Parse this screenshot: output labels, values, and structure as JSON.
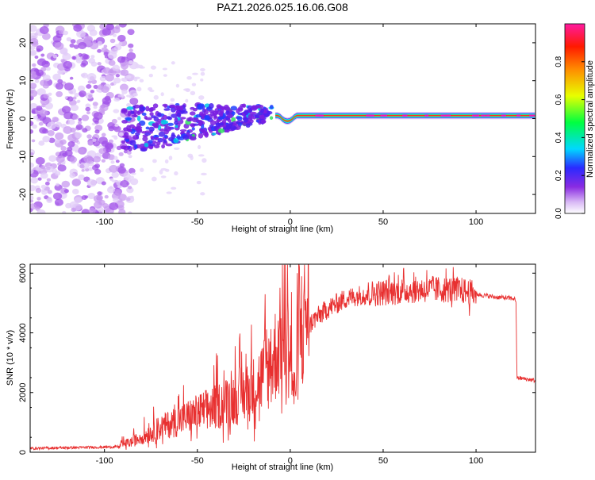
{
  "title": "PAZ1.2026.025.16.06.G08",
  "chart_data": [
    {
      "type": "heatmap",
      "name": "spectrogram",
      "xlabel": "Height of straight line (km)",
      "ylabel": "Frequency (Hz)",
      "xlim": [
        -140,
        132
      ],
      "ylim": [
        -25,
        25
      ],
      "xticks": [
        -100,
        -50,
        0,
        50,
        100
      ],
      "xtick_labels": [
        "-100",
        "-50",
        "0",
        "50",
        "100"
      ],
      "yticks": [
        -20,
        -10,
        0,
        10,
        20
      ],
      "ytick_labels": [
        "-20",
        "-10",
        "0",
        "10",
        "20"
      ],
      "colorbar": {
        "label": "Normalized spectral amplitude",
        "range": [
          0,
          1
        ],
        "ticks": [
          0.0,
          0.2,
          0.4,
          0.6,
          0.8
        ],
        "tick_labels": [
          "0.0",
          "0.2",
          "0.4",
          "0.6",
          "0.8"
        ],
        "colors": [
          "#ffffff",
          "#c8a0f0",
          "#7a1fe0",
          "#2020ff",
          "#00e0ff",
          "#00ff40",
          "#ffff00",
          "#ff8000",
          "#ff0000",
          "#ff00a0"
        ]
      },
      "features": {
        "noise_region_x": [
          -140,
          -90
        ],
        "turbulent_region_x": [
          -90,
          -10
        ],
        "stable_tone_x": [
          -10,
          132
        ],
        "stable_tone_freq": 0.8
      }
    },
    {
      "type": "line",
      "name": "snr",
      "xlabel": "Height of straight line (km)",
      "ylabel": "SNR (10 * v/v)",
      "xlim": [
        -140,
        132
      ],
      "ylim": [
        0,
        6300
      ],
      "xticks": [
        -100,
        -50,
        0,
        50,
        100
      ],
      "xtick_labels": [
        "-100",
        "-50",
        "0",
        "50",
        "100"
      ],
      "yticks": [
        0,
        2000,
        4000,
        6000
      ],
      "ytick_labels": [
        "0",
        "2000",
        "4000",
        "6000"
      ],
      "line_color": "#e83030",
      "envelope": {
        "x": [
          -140,
          -92,
          -85,
          -70,
          -50,
          -35,
          -20,
          -10,
          -5,
          0,
          2,
          5,
          8,
          12,
          20,
          30,
          40,
          50,
          60,
          70,
          80,
          90,
          100,
          110,
          120,
          121.5,
          122,
          132
        ],
        "y": [
          130,
          180,
          300,
          700,
          1100,
          1400,
          1800,
          2500,
          3200,
          3000,
          1500,
          3400,
          4000,
          4400,
          4800,
          5150,
          5300,
          5350,
          5400,
          5450,
          5450,
          5450,
          5300,
          5200,
          5150,
          5100,
          2500,
          2400
        ]
      }
    }
  ]
}
